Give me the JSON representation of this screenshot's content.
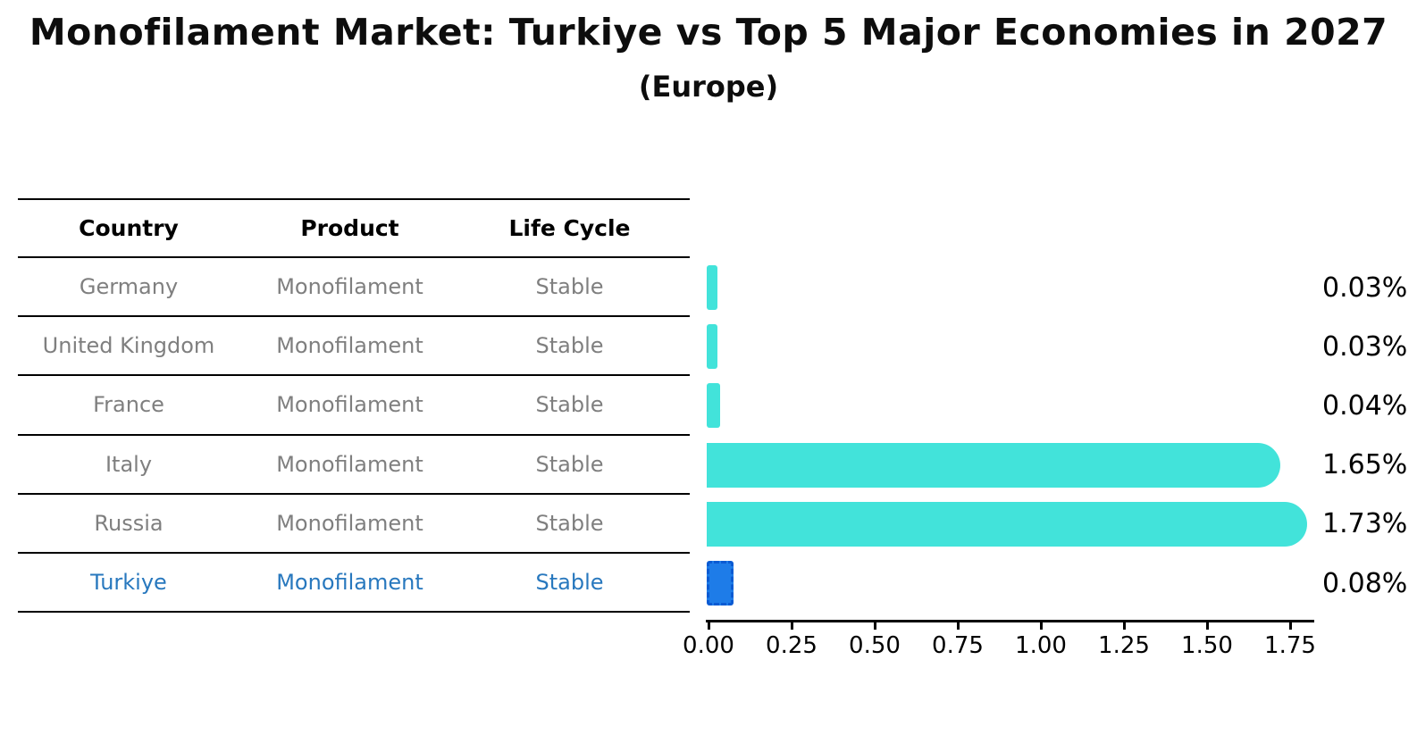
{
  "header": {
    "title": "Monofilament Market: Turkiye vs Top 5 Major Economies in 2027",
    "subtitle": "(Europe)"
  },
  "table": {
    "columns": [
      "Country",
      "Product",
      "Life Cycle"
    ],
    "rows": [
      {
        "country": "Germany",
        "product": "Monofilament",
        "life_cycle": "Stable"
      },
      {
        "country": "United Kingdom",
        "product": "Monofilament",
        "life_cycle": "Stable"
      },
      {
        "country": "France",
        "product": "Monofilament",
        "life_cycle": "Stable"
      },
      {
        "country": "Italy",
        "product": "Monofilament",
        "life_cycle": "Stable"
      },
      {
        "country": "Russia",
        "product": "Monofilament",
        "life_cycle": "Stable"
      },
      {
        "country": "Turkiye",
        "product": "Monofilament",
        "life_cycle": "Stable"
      }
    ]
  },
  "chart_data": {
    "type": "bar",
    "orientation": "horizontal",
    "title": "Monofilament Market: Turkiye vs Top 5 Major Economies in 2027",
    "subtitle": "(Europe)",
    "categories": [
      "Germany",
      "United Kingdom",
      "France",
      "Italy",
      "Russia",
      "Turkiye"
    ],
    "values": [
      0.03,
      0.03,
      0.04,
      1.65,
      1.73,
      0.08
    ],
    "value_labels": [
      "0.03%",
      "0.03%",
      "0.04%",
      "1.65%",
      "1.73%",
      "0.08%"
    ],
    "unit": "%",
    "xlim": [
      0,
      1.82
    ],
    "x_ticks": [
      "0.00",
      "0.25",
      "0.50",
      "0.75",
      "1.00",
      "1.25",
      "1.50",
      "1.75"
    ],
    "grid": false,
    "legend": false,
    "bar_color": "#42e3da",
    "highlight_color": "#1e7ce8",
    "highlight_border_color": "#0b5bd3",
    "highlight_index": 5,
    "highlight_text_color": "#2878be"
  }
}
